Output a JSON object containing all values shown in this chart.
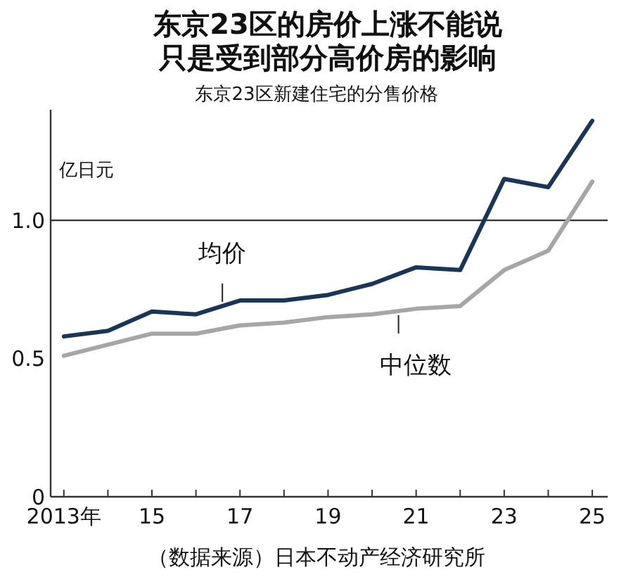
{
  "chart_data": {
    "type": "line",
    "title": "东京23区的房价上涨不能说只是受到部分高价房的影响",
    "subtitle": "东京23区新建住宅的分售价格",
    "ylabel": "亿日元",
    "x": [
      2013,
      2014,
      2015,
      2016,
      2017,
      2018,
      2019,
      2020,
      2021,
      2022,
      2023,
      2024,
      2025
    ],
    "series": [
      {
        "name": "均价",
        "color": "#1b3557",
        "values": [
          0.58,
          0.6,
          0.67,
          0.66,
          0.71,
          0.71,
          0.73,
          0.77,
          0.83,
          0.82,
          1.15,
          1.12,
          1.36
        ]
      },
      {
        "name": "中位数",
        "color": "#a6a6a6",
        "values": [
          0.51,
          0.55,
          0.59,
          0.59,
          0.62,
          0.63,
          0.65,
          0.66,
          0.68,
          0.69,
          0.82,
          0.89,
          1.14
        ]
      }
    ],
    "xlim": [
      2012.7,
      2025.35
    ],
    "xticks": [
      {
        "value": 2013,
        "label": "2013年"
      },
      {
        "value": 2014,
        "label": null
      },
      {
        "value": 2015,
        "label": "15"
      },
      {
        "value": 2016,
        "label": null
      },
      {
        "value": 2017,
        "label": "17"
      },
      {
        "value": 2018,
        "label": null
      },
      {
        "value": 2019,
        "label": "19"
      },
      {
        "value": 2020,
        "label": null
      },
      {
        "value": 2021,
        "label": "21"
      },
      {
        "value": 2022,
        "label": null
      },
      {
        "value": 2023,
        "label": "23"
      },
      {
        "value": 2024,
        "label": null
      },
      {
        "value": 2025,
        "label": "25"
      }
    ],
    "ylim": [
      0,
      1.4
    ],
    "yticks": [
      0,
      0.5,
      {
        "value": 1,
        "label": "1.0"
      }
    ],
    "ref_lines": [
      {
        "axis": "y",
        "value": 1,
        "color": "#333333"
      }
    ],
    "legend": false,
    "marker": "none",
    "line_style": "solid",
    "grid": false,
    "annotations": [
      "（数据来源）日本不动产经济研究所"
    ]
  }
}
